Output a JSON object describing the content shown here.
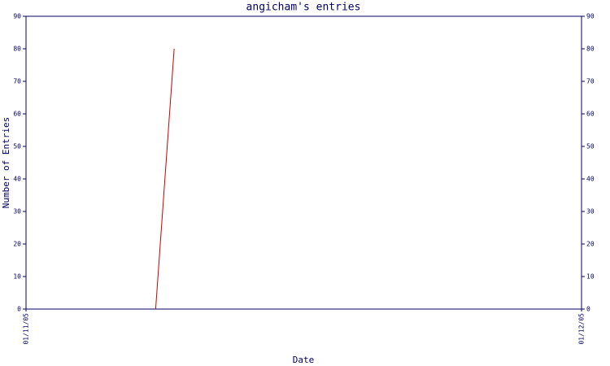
{
  "chart_data": {
    "type": "line",
    "title": "angicham's entries",
    "x_label": "Date",
    "y_label": "Number of Entries",
    "x": [
      "08/11/05",
      "09/11/05"
    ],
    "values": [
      0,
      80
    ],
    "color": "#cc0000",
    "xlim": [
      "01/11/05",
      "01/12/05"
    ],
    "xticks": [
      "01/11/05",
      "01/12/05"
    ],
    "ylim": [
      0,
      90
    ],
    "yticks": [
      0,
      10,
      20,
      30,
      40,
      50,
      60,
      70,
      80,
      90
    ],
    "y2lim": [
      0,
      90
    ],
    "y2ticks": [
      0,
      10,
      20,
      30,
      40,
      50,
      60,
      70,
      80,
      90
    ]
  }
}
